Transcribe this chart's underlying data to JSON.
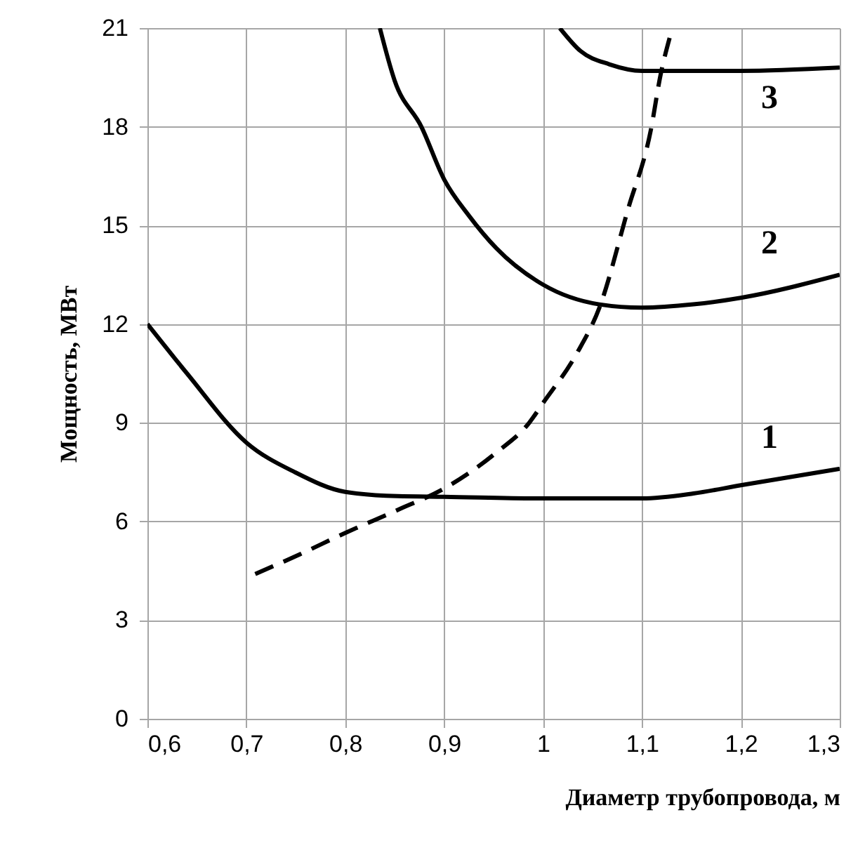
{
  "chart_data": {
    "type": "line",
    "xlabel": "Диаметр трубопровода, м",
    "ylabel": "Мощность, МВт",
    "xlim": [
      0.6,
      1.3
    ],
    "xticks": [
      {
        "value": 0.6,
        "label": "0,6"
      },
      {
        "value": 0.7,
        "label": "0,7"
      },
      {
        "value": 0.8,
        "label": "0,8"
      },
      {
        "value": 0.9,
        "label": "0,9"
      },
      1,
      {
        "value": 1.1,
        "label": "1,1"
      },
      {
        "value": 1.2,
        "label": "1,2"
      },
      {
        "value": 1.3,
        "label": "1,3"
      }
    ],
    "ylim": [
      0,
      21
    ],
    "yticks": [
      0,
      3,
      6,
      9,
      12,
      15,
      18,
      21
    ],
    "grid": true,
    "line_style": "solid",
    "series": [
      {
        "name": "1",
        "color": "#000000",
        "x": [
          0.6,
          0.64,
          0.7,
          0.749,
          0.8,
          0.853,
          0.9,
          1.0,
          1.1,
          1.152,
          1.2,
          1.3
        ],
        "values": [
          12,
          10.5,
          8.4,
          7.5,
          6.9,
          6.77,
          6.75,
          6.7,
          6.7,
          6.85,
          7.1,
          7.6
        ]
      },
      {
        "name": "2",
        "color": "#000000",
        "x": [
          0.835,
          0.85,
          0.877,
          0.9,
          0.925,
          0.953,
          1.0,
          1.057,
          1.1,
          1.152,
          1.2,
          1.3
        ],
        "values": [
          21,
          19.4,
          18,
          16.4,
          15.3,
          14.3,
          13.2,
          12.6,
          12.5,
          12.6,
          12.8,
          13.5
        ]
      },
      {
        "name": "3",
        "color": "#000000",
        "x": [
          1.017,
          1.038,
          1.067,
          1.1,
          1.2,
          1.3
        ],
        "values": [
          21,
          20.3,
          19.9,
          19.7,
          19.7,
          19.8
        ]
      },
      {
        "color": "#000000",
        "line_style": "dashed",
        "x": [
          0.709,
          0.754,
          0.8,
          0.853,
          0.9,
          0.953,
          0.986,
          1.0,
          1.034,
          1.057,
          1.086,
          1.109,
          1.119,
          1.128
        ],
        "values": [
          4.4,
          5.0,
          5.65,
          6.35,
          7.0,
          8.1,
          9.0,
          9.6,
          11.1,
          12.5,
          15.5,
          17.9,
          19.6,
          20.7
        ]
      }
    ]
  }
}
